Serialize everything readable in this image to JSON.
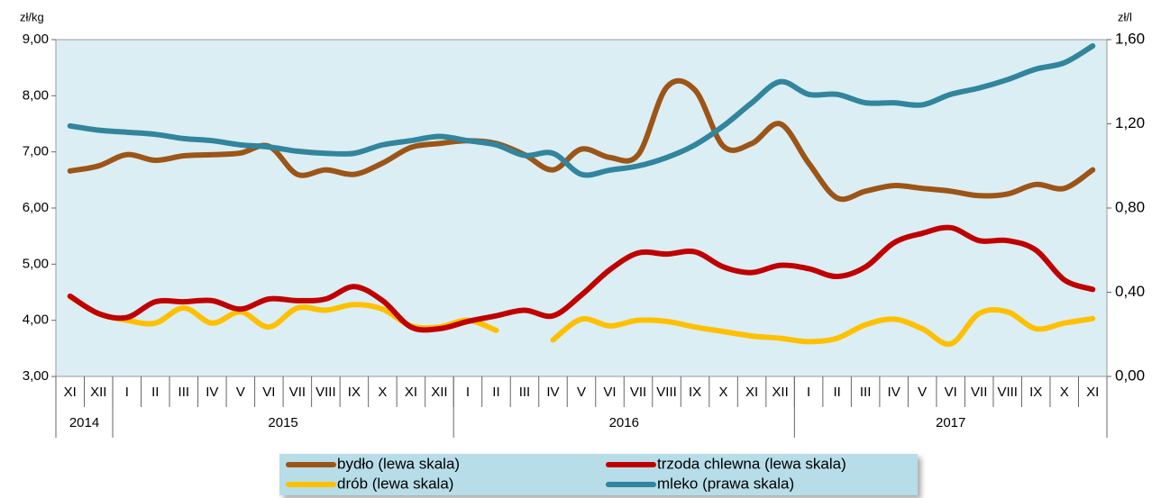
{
  "chart_data": {
    "type": "line",
    "y_label": "zł/kg",
    "y2_label": "zł/l",
    "categories": [
      "XI",
      "XII",
      "I",
      "II",
      "III",
      "IV",
      "V",
      "VI",
      "VII",
      "VIII",
      "IX",
      "X",
      "XI",
      "XII",
      "I",
      "II",
      "III",
      "IV",
      "V",
      "VI",
      "VII",
      "VIII",
      "IX",
      "X",
      "XI",
      "XII",
      "I",
      "II",
      "III",
      "IV",
      "V",
      "VI",
      "VII",
      "VIII",
      "IX",
      "X",
      "XI"
    ],
    "year_groups": [
      {
        "label": "2014",
        "months": 2
      },
      {
        "label": "2015",
        "months": 12
      },
      {
        "label": "2016",
        "months": 12
      },
      {
        "label": "2017",
        "months": 11
      }
    ],
    "ylim": [
      3,
      9
    ],
    "yticks": [
      {
        "value": 3,
        "label": "3,00"
      },
      {
        "value": 4,
        "label": "4,00"
      },
      {
        "value": 5,
        "label": "5,00"
      },
      {
        "value": 6,
        "label": "6,00"
      },
      {
        "value": 7,
        "label": "7,00"
      },
      {
        "value": 8,
        "label": "8,00"
      },
      {
        "value": 9,
        "label": "9,00"
      }
    ],
    "y2lim": [
      0,
      1.6
    ],
    "y2ticks": [
      {
        "value": 0,
        "label": "0,00"
      },
      {
        "value": 0.4,
        "label": "0,40"
      },
      {
        "value": 0.8,
        "label": "0,80"
      },
      {
        "value": 1.2,
        "label": "1,20"
      },
      {
        "value": 1.6,
        "label": "1,60"
      }
    ],
    "series": [
      {
        "name": "bydło (lewa skala)",
        "color": "#9c5516",
        "values": [
          6.66,
          6.75,
          6.95,
          6.85,
          6.93,
          6.95,
          6.98,
          7.1,
          6.6,
          6.68,
          6.6,
          6.8,
          7.08,
          7.15,
          7.2,
          7.15,
          6.95,
          6.68,
          7.05,
          6.9,
          6.95,
          8.15,
          8.1,
          7.1,
          7.15,
          7.5,
          6.8,
          6.18,
          6.3,
          6.4,
          6.35,
          6.3,
          6.22,
          6.25,
          6.42,
          6.35,
          6.68
        ]
      },
      {
        "name": "trzoda chlewna (lewa skala)",
        "color": "#c00000",
        "values": [
          4.43,
          4.12,
          4.05,
          4.33,
          4.33,
          4.35,
          4.2,
          4.38,
          4.35,
          4.38,
          4.6,
          4.35,
          3.88,
          3.85,
          3.98,
          4.08,
          4.18,
          4.08,
          4.45,
          4.9,
          5.2,
          5.18,
          5.22,
          4.95,
          4.85,
          4.98,
          4.92,
          4.78,
          4.95,
          5.38,
          5.55,
          5.65,
          5.42,
          5.42,
          5.25,
          4.72,
          4.55
        ]
      },
      {
        "name": "drób (lewa skala)",
        "color": "#ffc000",
        "values": [
          4.42,
          4.12,
          4.0,
          3.95,
          4.22,
          3.95,
          4.15,
          3.88,
          4.22,
          4.18,
          4.28,
          4.2,
          3.9,
          3.88,
          4.0,
          3.82,
          null,
          3.65,
          4.02,
          3.9,
          4.0,
          3.98,
          3.88,
          3.8,
          3.72,
          3.68,
          3.62,
          3.68,
          3.92,
          4.02,
          3.85,
          3.58,
          4.12,
          4.15,
          3.85,
          3.95,
          4.03
        ]
      },
      {
        "name": "mleko (prawa skala)",
        "color": "#31859c",
        "axis": "y2",
        "values": [
          1.19,
          1.17,
          1.16,
          1.15,
          1.13,
          1.12,
          1.1,
          1.09,
          1.07,
          1.06,
          1.06,
          1.1,
          1.12,
          1.14,
          1.12,
          1.1,
          1.05,
          1.06,
          0.96,
          0.98,
          1.0,
          1.04,
          1.1,
          1.19,
          1.3,
          1.4,
          1.34,
          1.34,
          1.3,
          1.3,
          1.29,
          1.34,
          1.37,
          1.41,
          1.46,
          1.49,
          1.57
        ]
      }
    ]
  }
}
